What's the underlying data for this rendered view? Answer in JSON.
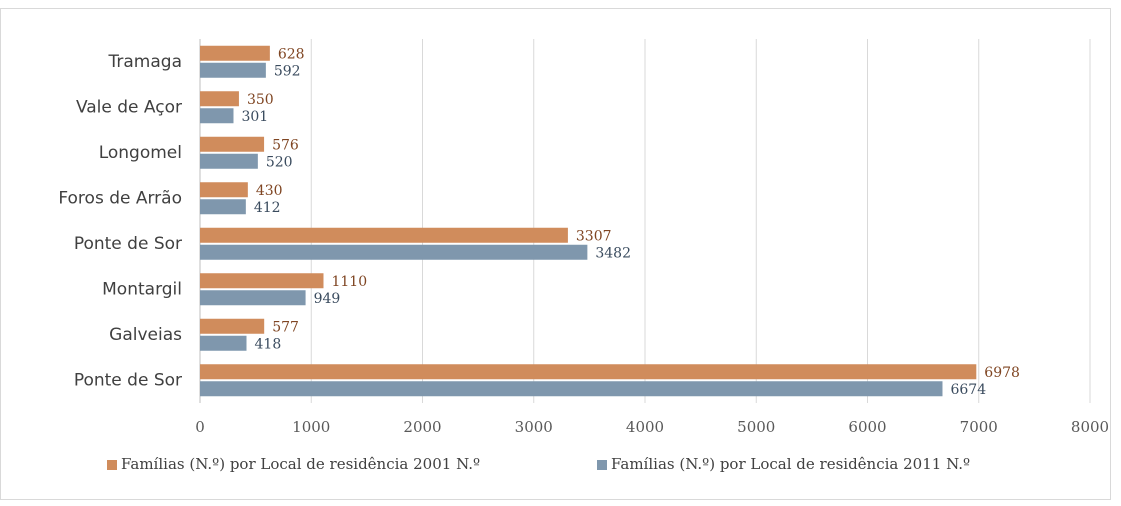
{
  "chart_data": {
    "type": "bar",
    "orientation": "horizontal",
    "categories": [
      "Tramaga",
      "Vale de Açor",
      "Longomel",
      "Foros de Arrão",
      "Ponte de Sor",
      "Montargil",
      "Galveias",
      "Ponte de Sor"
    ],
    "series": [
      {
        "name": "Famílias (N.º) por Local de residência 2001 N.º",
        "color": "#d08c5c",
        "label_color": "#7f4522",
        "values": [
          628,
          350,
          576,
          430,
          3307,
          1110,
          577,
          6978
        ]
      },
      {
        "name": "Famílias (N.º) por Local de residência 2011 N.º",
        "color": "#7f97ad",
        "label_color": "#3a4b5e",
        "values": [
          592,
          301,
          520,
          412,
          3482,
          949,
          418,
          6674
        ]
      }
    ],
    "xlim": [
      0,
      8000
    ],
    "xticks": [
      0,
      1000,
      2000,
      3000,
      4000,
      5000,
      6000,
      7000,
      8000
    ],
    "grid": true,
    "legend": "bottom"
  }
}
